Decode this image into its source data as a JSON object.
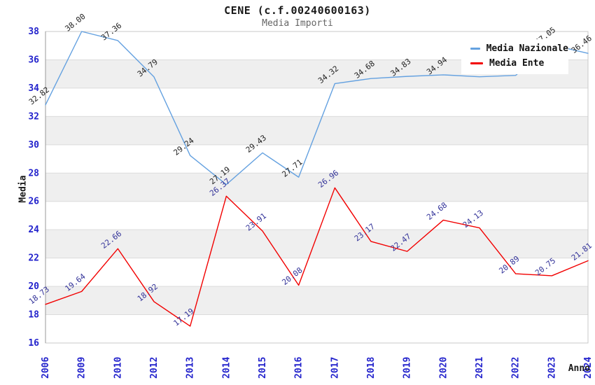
{
  "page": {
    "title": "CENE (c.f.00240600163)",
    "subtitle": "Media Importi"
  },
  "chart_data": {
    "type": "line",
    "title": "CENE (c.f.00240600163)",
    "subtitle": "Media Importi",
    "xlabel": "Anno",
    "ylabel": "Media",
    "categories": [
      "2006",
      "2009",
      "2010",
      "2012",
      "2013",
      "2014",
      "2015",
      "2016",
      "2017",
      "2018",
      "2019",
      "2020",
      "2021",
      "2022",
      "2023",
      "2024"
    ],
    "ylim": [
      16,
      38
    ],
    "ytick_step": 2,
    "grid": "horizontal gridlines with alternating gray bands",
    "legend_position": "top-right",
    "series": [
      {
        "name": "Media Nazionale",
        "color": "#64a1e0",
        "label_color": "#222222",
        "values": [
          32.82,
          38.0,
          37.36,
          34.79,
          29.24,
          27.19,
          29.43,
          27.71,
          34.32,
          34.68,
          34.83,
          34.94,
          34.8,
          34.9,
          37.05,
          36.46
        ],
        "labels": [
          "32.82",
          "38.00",
          "37.36",
          "34.79",
          "29.24",
          "27.19",
          "29.43",
          "27.71",
          "34.32",
          "34.68",
          "34.83",
          "34.94",
          "",
          "",
          "37.05",
          "36.46"
        ]
      },
      {
        "name": "Media Ente",
        "color": "#f20000",
        "label_color": "#333399",
        "values": [
          18.73,
          19.64,
          22.66,
          18.92,
          17.19,
          26.37,
          23.91,
          20.08,
          26.96,
          23.17,
          22.47,
          24.68,
          24.13,
          20.89,
          20.75,
          21.81
        ],
        "labels": [
          "18.73",
          "19.64",
          "22.66",
          "18.92",
          "17.19",
          "26.37",
          "23.91",
          "20.08",
          "26.96",
          "23.17",
          "22.47",
          "24.68",
          "24.13",
          "20.89",
          "20.75",
          "21.81"
        ]
      }
    ],
    "colors": {
      "tick_label": "#2323cc",
      "band": "#efefef",
      "gridline": "#dcdcdc",
      "border": "#c9c9c9",
      "axis_line": "#999999",
      "title": "#1a1a1a",
      "subtitle": "#666666"
    }
  },
  "legend": {
    "items": [
      {
        "label": "Media Nazionale",
        "color": "#64a1e0"
      },
      {
        "label": "Media Ente",
        "color": "#f20000"
      }
    ]
  }
}
